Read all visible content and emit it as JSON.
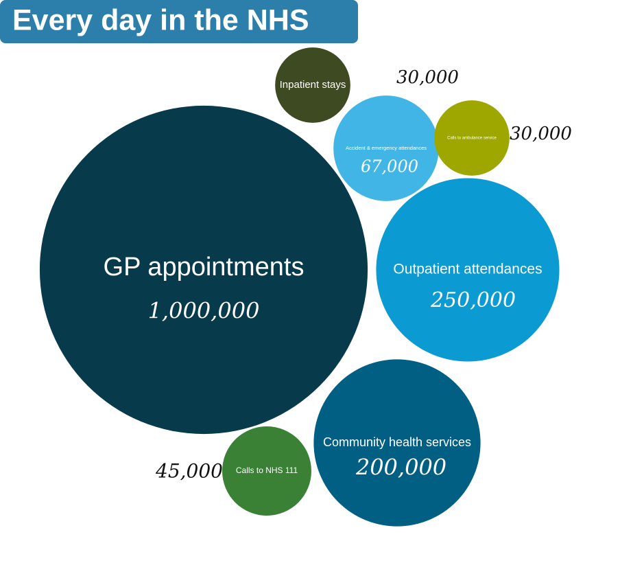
{
  "chart_data": {
    "type": "bubble",
    "title": "Every day in the NHS",
    "categories": [
      "GP appointments",
      "Inpatient stays",
      "Accident & emergency attendances",
      "Calls to ambulance service",
      "Outpatient attendances",
      "Community health services",
      "Calls to NHS 111"
    ],
    "values": [
      1000000,
      30000,
      67000,
      30000,
      250000,
      200000,
      45000
    ],
    "value_labels": [
      "1,000,000",
      "30,000",
      "67,000",
      "30,000",
      "250,000",
      "200,000",
      "45,000"
    ],
    "colors": [
      "#073b4c",
      "#3e4a22",
      "#41b6e6",
      "#9ea700",
      "#0b9ad2",
      "#005f83",
      "#3a8136"
    ]
  }
}
